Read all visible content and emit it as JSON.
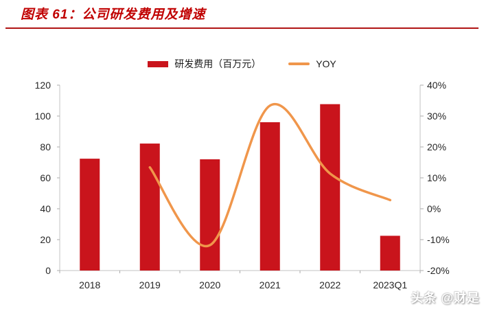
{
  "header": {
    "title": "图表 61：公司研发费用及增速"
  },
  "legend": {
    "bar_label": "研发费用（百万元）",
    "line_label": "YOY"
  },
  "watermark": {
    "text": "头条 @财是"
  },
  "colors": {
    "title": "#C00000",
    "title_rule": "#B01414",
    "bar": "#C9141C",
    "line": "#F0964B",
    "axis": "#C3C3C3",
    "tick": "#ABABAB",
    "tick_label": "#262626"
  },
  "chart_data": {
    "type": "bar",
    "title": "图表 61：公司研发费用及增速",
    "categories": [
      "2018",
      "2019",
      "2020",
      "2021",
      "2022",
      "2023Q1"
    ],
    "series": [
      {
        "name": "研发费用（百万元）",
        "type": "bar",
        "axis": "left",
        "values": [
          72.4,
          82.2,
          72.0,
          96.0,
          107.7,
          22.5
        ]
      },
      {
        "name": "YOY",
        "type": "line",
        "axis": "right",
        "values": [
          null,
          13.4,
          -11.8,
          33.4,
          11.4,
          2.8
        ]
      }
    ],
    "left_axis": {
      "min": 0,
      "max": 120,
      "step": 20,
      "tick_values": [
        0,
        20,
        40,
        60,
        80,
        100,
        120
      ],
      "tick_labels": [
        "0",
        "20",
        "40",
        "60",
        "80",
        "100",
        "120"
      ]
    },
    "right_axis": {
      "min": -20,
      "max": 40,
      "step": 10,
      "tick_values": [
        -20,
        -10,
        0,
        10,
        20,
        30,
        40
      ],
      "tick_labels": [
        "-20%",
        "-10%",
        "0%",
        "10%",
        "20%",
        "30%",
        "40%"
      ]
    },
    "grid": false,
    "legend_position": "top-center"
  }
}
